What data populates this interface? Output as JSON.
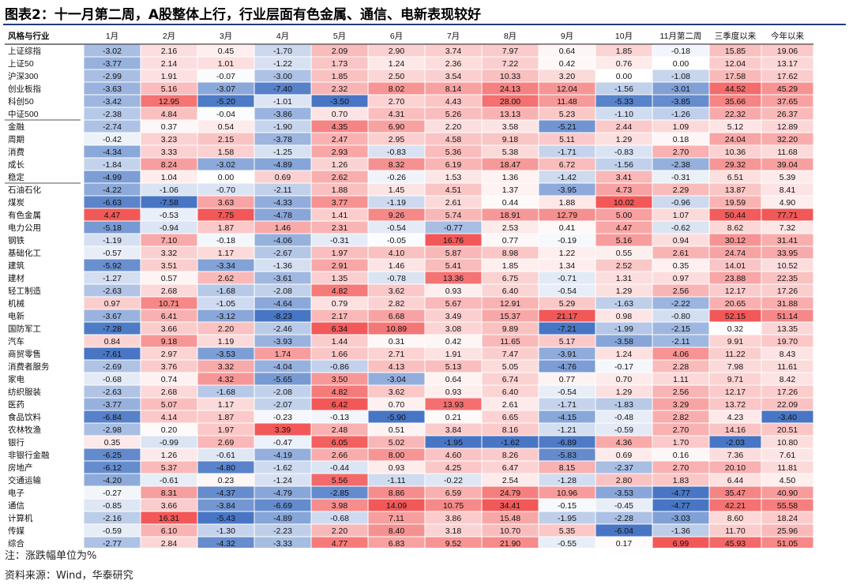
{
  "title": "图表2：十一月第二周，A股整体上行，行业层面有色金属、通信、电新表现较好",
  "note": "注：涨跌幅单位为%",
  "source": "资料来源：Wind，华泰研究",
  "colors": {
    "positive": "#f15a5a",
    "negative": "#4a78c2",
    "rule": "#1f3d7a"
  },
  "chart_data": {
    "type": "heatmap",
    "corner_label": "风格与行业",
    "columns": [
      "1月",
      "2月",
      "3月",
      "4月",
      "5月",
      "6月",
      "7月",
      "8月",
      "9月",
      "10月",
      "11月第二周",
      "三季度以来",
      "今年以来"
    ],
    "rows": [
      {
        "label": "上证综指",
        "values": [
          -3.02,
          2.16,
          0.45,
          -1.7,
          2.09,
          2.9,
          3.74,
          7.97,
          0.64,
          1.85,
          -0.18,
          15.85,
          19.06
        ]
      },
      {
        "label": "上证50",
        "values": [
          -3.77,
          2.14,
          1.01,
          -1.22,
          1.73,
          1.24,
          2.36,
          7.22,
          0.42,
          0.76,
          0.0,
          12.04,
          13.17
        ]
      },
      {
        "label": "沪深300",
        "values": [
          -2.99,
          1.91,
          -0.07,
          -3.0,
          1.85,
          2.5,
          3.54,
          10.33,
          3.2,
          0.0,
          -1.08,
          17.58,
          17.62
        ]
      },
      {
        "label": "创业板指",
        "values": [
          -3.63,
          5.16,
          -3.07,
          -7.4,
          2.32,
          8.02,
          8.14,
          24.13,
          12.04,
          -1.56,
          -3.01,
          44.52,
          45.29
        ]
      },
      {
        "label": "科创50",
        "values": [
          -3.42,
          12.95,
          -5.2,
          -1.01,
          -3.5,
          2.7,
          4.43,
          28.0,
          11.48,
          -5.33,
          -3.85,
          35.66,
          37.65
        ]
      },
      {
        "label": "中证500",
        "values": [
          -2.38,
          4.84,
          -0.04,
          -3.86,
          0.7,
          4.31,
          5.26,
          13.13,
          5.23,
          -1.1,
          -1.26,
          22.32,
          26.37
        ]
      },
      {
        "label": "金融",
        "values": [
          -2.74,
          0.37,
          0.54,
          -1.9,
          4.35,
          6.9,
          2.2,
          3.58,
          -5.21,
          2.44,
          1.09,
          5.12,
          12.89
        ]
      },
      {
        "label": "周期",
        "values": [
          -0.42,
          3.23,
          2.15,
          -3.78,
          2.47,
          2.95,
          4.58,
          9.18,
          5.11,
          1.29,
          0.18,
          24.04,
          32.2
        ]
      },
      {
        "label": "消费",
        "values": [
          -4.34,
          3.33,
          1.58,
          -1.25,
          2.93,
          -0.83,
          5.36,
          5.38,
          -1.71,
          -0.83,
          2.7,
          10.36,
          11.68
        ]
      },
      {
        "label": "成长",
        "values": [
          -1.84,
          8.24,
          -3.02,
          -4.89,
          1.26,
          8.32,
          6.19,
          18.47,
          6.72,
          -1.56,
          -2.38,
          29.32,
          39.04
        ]
      },
      {
        "label": "稳定",
        "values": [
          -4.99,
          1.04,
          0.0,
          0.69,
          2.62,
          -0.26,
          1.53,
          1.36,
          -1.42,
          3.41,
          -0.31,
          6.51,
          5.39
        ]
      },
      {
        "label": "石油石化",
        "values": [
          -4.22,
          -1.06,
          -0.7,
          -2.11,
          1.88,
          1.45,
          4.51,
          1.37,
          -3.95,
          4.73,
          2.29,
          13.87,
          8.41
        ]
      },
      {
        "label": "煤炭",
        "values": [
          -6.63,
          -7.58,
          3.63,
          -4.33,
          3.77,
          -1.19,
          2.61,
          0.44,
          1.88,
          10.02,
          -0.96,
          19.59,
          4.9
        ]
      },
      {
        "label": "有色金属",
        "values": [
          4.47,
          -0.53,
          7.75,
          -4.78,
          1.41,
          9.26,
          5.74,
          18.91,
          12.79,
          5.0,
          1.07,
          50.44,
          77.71
        ]
      },
      {
        "label": "电力公用",
        "values": [
          -5.18,
          -0.94,
          1.87,
          1.46,
          2.31,
          -0.54,
          -0.77,
          2.53,
          0.41,
          4.47,
          -0.62,
          8.62,
          7.32
        ]
      },
      {
        "label": "钢铁",
        "values": [
          -1.19,
          7.1,
          -0.18,
          -4.06,
          -0.31,
          -0.05,
          16.76,
          0.77,
          -0.19,
          5.16,
          0.94,
          30.12,
          31.41
        ]
      },
      {
        "label": "基础化工",
        "values": [
          -0.57,
          3.32,
          1.17,
          -2.67,
          1.97,
          4.1,
          5.87,
          8.98,
          1.22,
          0.55,
          2.61,
          24.74,
          33.95
        ]
      },
      {
        "label": "建筑",
        "values": [
          -5.92,
          3.51,
          -3.34,
          -1.36,
          2.91,
          1.46,
          5.41,
          1.85,
          1.34,
          2.52,
          0.35,
          14.01,
          10.52
        ]
      },
      {
        "label": "建材",
        "values": [
          -1.27,
          0.57,
          2.62,
          -3.61,
          1.35,
          -0.78,
          13.36,
          6.75,
          -0.71,
          1.31,
          0.97,
          23.88,
          22.35
        ]
      },
      {
        "label": "轻工制造",
        "values": [
          -2.63,
          2.68,
          -1.68,
          -2.08,
          4.82,
          3.62,
          0.93,
          6.4,
          -0.54,
          1.29,
          2.56,
          12.17,
          17.26
        ]
      },
      {
        "label": "机械",
        "values": [
          0.97,
          10.71,
          -1.05,
          -4.64,
          0.79,
          2.82,
          5.67,
          12.91,
          5.29,
          -1.63,
          -2.22,
          20.65,
          31.88
        ]
      },
      {
        "label": "电新",
        "values": [
          -3.67,
          6.41,
          -3.12,
          -8.23,
          2.17,
          6.68,
          3.49,
          15.37,
          21.17,
          0.98,
          -0.8,
          52.15,
          51.14
        ]
      },
      {
        "label": "国防军工",
        "values": [
          -7.28,
          3.66,
          2.2,
          -2.46,
          6.34,
          10.89,
          3.08,
          9.89,
          -7.21,
          -1.99,
          -2.15,
          0.32,
          13.35
        ]
      },
      {
        "label": "汽车",
        "values": [
          0.84,
          9.18,
          1.19,
          -3.93,
          1.44,
          0.31,
          0.42,
          11.65,
          5.17,
          -3.58,
          -2.11,
          9.91,
          19.7
        ]
      },
      {
        "label": "商贸零售",
        "values": [
          -7.61,
          2.97,
          -3.53,
          1.74,
          1.66,
          2.71,
          1.91,
          7.47,
          -3.91,
          1.24,
          4.06,
          11.22,
          8.43
        ]
      },
      {
        "label": "消费者服务",
        "values": [
          -2.69,
          3.76,
          3.32,
          -4.04,
          -0.86,
          4.13,
          5.13,
          5.05,
          -4.76,
          -0.17,
          2.28,
          7.98,
          11.61
        ]
      },
      {
        "label": "家电",
        "values": [
          -0.68,
          0.74,
          4.32,
          -5.65,
          3.5,
          -3.04,
          0.64,
          6.74,
          0.77,
          0.7,
          1.11,
          9.71,
          8.42
        ]
      },
      {
        "label": "纺织服装",
        "values": [
          -2.63,
          2.68,
          -1.68,
          -2.08,
          4.82,
          3.62,
          0.93,
          6.4,
          -0.54,
          1.29,
          2.56,
          12.17,
          17.26
        ]
      },
      {
        "label": "医药",
        "values": [
          -3.77,
          5.07,
          1.17,
          -2.07,
          6.42,
          0.7,
          13.93,
          2.61,
          -1.71,
          -1.83,
          3.29,
          13.72,
          22.09
        ]
      },
      {
        "label": "食品饮料",
        "values": [
          -6.84,
          4.14,
          1.87,
          -0.23,
          -0.13,
          -5.9,
          0.21,
          6.65,
          -4.15,
          -0.48,
          2.82,
          4.23,
          -3.4
        ]
      },
      {
        "label": "农林牧渔",
        "values": [
          -2.98,
          0.2,
          1.97,
          3.39,
          2.48,
          0.51,
          3.84,
          8.16,
          -1.21,
          -0.59,
          2.7,
          14.16,
          20.51
        ]
      },
      {
        "label": "银行",
        "values": [
          0.35,
          -0.99,
          2.69,
          -0.47,
          6.05,
          5.02,
          -1.95,
          -1.62,
          -6.89,
          4.36,
          1.7,
          -2.03,
          10.8
        ]
      },
      {
        "label": "非银行金融",
        "values": [
          -6.25,
          1.26,
          -0.61,
          -4.19,
          2.66,
          8.0,
          4.6,
          8.26,
          -5.83,
          0.69,
          0.16,
          7.36,
          7.61
        ]
      },
      {
        "label": "房地产",
        "values": [
          -6.12,
          5.37,
          -4.8,
          -1.62,
          -0.44,
          0.93,
          4.25,
          6.47,
          8.15,
          -2.37,
          2.7,
          20.1,
          11.81
        ]
      },
      {
        "label": "交通运输",
        "values": [
          -4.2,
          -0.61,
          0.23,
          -1.24,
          5.56,
          -1.11,
          -0.22,
          2.54,
          -1.28,
          2.8,
          1.83,
          6.44,
          4.5
        ]
      },
      {
        "label": "电子",
        "values": [
          -0.27,
          8.31,
          -4.37,
          -4.79,
          -2.85,
          8.86,
          6.59,
          24.79,
          10.96,
          -3.53,
          -4.77,
          35.47,
          40.9
        ]
      },
      {
        "label": "通信",
        "values": [
          -0.85,
          3.66,
          -3.84,
          -6.69,
          3.98,
          14.09,
          10.75,
          34.41,
          -0.15,
          -0.45,
          -4.77,
          42.21,
          55.58
        ]
      },
      {
        "label": "计算机",
        "values": [
          -2.16,
          16.31,
          -5.43,
          -4.89,
          -0.68,
          7.11,
          3.86,
          15.48,
          -1.95,
          -2.28,
          -3.03,
          8.6,
          18.24
        ]
      },
      {
        "label": "传媒",
        "values": [
          -0.59,
          6.1,
          -1.3,
          -2.23,
          2.2,
          8.4,
          3.18,
          10.7,
          5.35,
          -6.04,
          -1.36,
          11.7,
          25.96
        ]
      },
      {
        "label": "综合",
        "values": [
          -2.77,
          2.84,
          -4.32,
          -3.33,
          4.77,
          6.83,
          9.52,
          21.9,
          -0.55,
          0.17,
          6.99,
          45.93,
          51.05
        ]
      }
    ]
  }
}
